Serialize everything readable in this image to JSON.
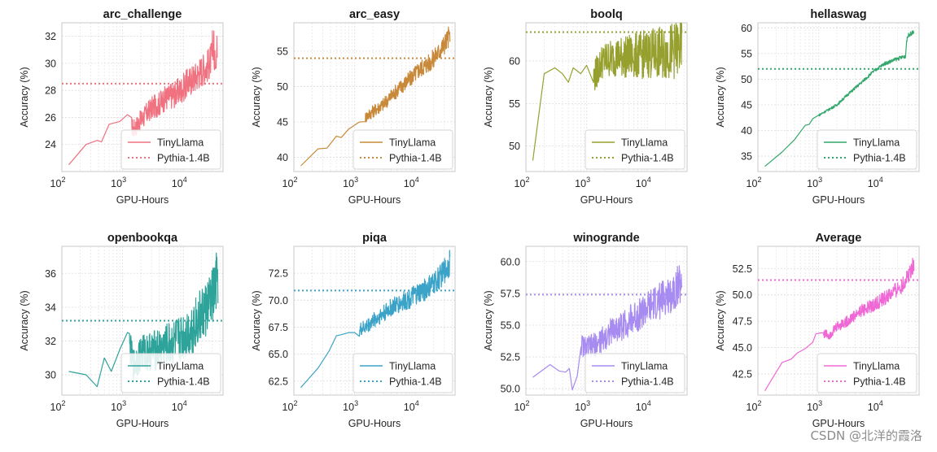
{
  "watermark": "CSDN @北洋的霞洛",
  "chart_data": [
    {
      "type": "line",
      "title": "arc_challenge",
      "xlabel": "GPU-Hours",
      "ylabel": "Accuracy (%)",
      "x_scale": "log",
      "xlim": [
        100,
        45000
      ],
      "ylim": [
        22.0,
        33.0
      ],
      "yticks": [
        24,
        26,
        28,
        30,
        32
      ],
      "ytick_labels": [
        "24",
        "26",
        "28",
        "30",
        "32"
      ],
      "series": [
        {
          "name": "TinyLlama",
          "color": "#f0717f",
          "points": [
            [
              130,
              22.5
            ],
            [
              250,
              24.0
            ],
            [
              380,
              24.3
            ],
            [
              450,
              24.2
            ],
            [
              600,
              25.5
            ],
            [
              900,
              25.7
            ],
            [
              1200,
              26.2
            ],
            [
              1500,
              25.1
            ],
            [
              2000,
              25.8
            ],
            [
              3000,
              26.7
            ],
            [
              4000,
              27.0
            ],
            [
              5000,
              27.4
            ],
            [
              7000,
              27.7
            ],
            [
              9000,
              28.0
            ],
            [
              12000,
              28.6
            ],
            [
              16000,
              29.0
            ],
            [
              20000,
              29.5
            ],
            [
              25000,
              29.8
            ],
            [
              30000,
              30.5
            ],
            [
              33000,
              31.0
            ],
            [
              36000,
              31.5
            ]
          ],
          "noise": 1.3,
          "noise_start": 1400,
          "tail": {
            "from": 30000,
            "low": 29.5,
            "high": 32.5
          }
        },
        {
          "name": "Pythia-1.4B",
          "color": "#f0717f",
          "style": "dotted",
          "y": 28.5
        }
      ],
      "legend": "lower-right"
    },
    {
      "type": "line",
      "title": "arc_easy",
      "xlabel": "GPU-Hours",
      "ylabel": "Accuracy (%)",
      "x_scale": "log",
      "xlim": [
        100,
        45000
      ],
      "ylim": [
        38.0,
        59.0
      ],
      "yticks": [
        40,
        45,
        50,
        55
      ],
      "ytick_labels": [
        "40",
        "45",
        "50",
        "55"
      ],
      "series": [
        {
          "name": "TinyLlama",
          "color": "#c9893a",
          "points": [
            [
              130,
              38.8
            ],
            [
              250,
              41.2
            ],
            [
              350,
              41.3
            ],
            [
              500,
              43.0
            ],
            [
              600,
              42.8
            ],
            [
              800,
              44.0
            ],
            [
              1200,
              45.0
            ],
            [
              2000,
              46.5
            ],
            [
              3000,
              47.5
            ],
            [
              5000,
              49.5
            ],
            [
              8000,
              51.0
            ],
            [
              12000,
              52.5
            ],
            [
              18000,
              53.5
            ],
            [
              25000,
              55.0
            ],
            [
              33000,
              56.5
            ],
            [
              37000,
              57.5
            ]
          ],
          "noise": 1.5,
          "noise_start": 1500
        },
        {
          "name": "Pythia-1.4B",
          "color": "#c9893a",
          "style": "dotted",
          "y": 54.0
        }
      ],
      "legend": "lower-right"
    },
    {
      "type": "line",
      "title": "boolq",
      "xlabel": "GPU-Hours",
      "ylabel": "Accuracy (%)",
      "x_scale": "log",
      "xlim": [
        100,
        45000
      ],
      "ylim": [
        47.0,
        64.5
      ],
      "yticks": [
        50,
        55,
        60
      ],
      "ytick_labels": [
        "50",
        "55",
        "60"
      ],
      "series": [
        {
          "name": "TinyLlama",
          "color": "#96a02e",
          "points": [
            [
              130,
              48.3
            ],
            [
              200,
              58.5
            ],
            [
              300,
              59.2
            ],
            [
              400,
              58.5
            ],
            [
              500,
              57.5
            ],
            [
              600,
              59.2
            ],
            [
              800,
              58.5
            ],
            [
              1000,
              59.5
            ],
            [
              1300,
              58.0
            ],
            [
              1800,
              60.0
            ],
            [
              3000,
              60.5
            ],
            [
              5000,
              60.5
            ],
            [
              10000,
              60.8
            ],
            [
              20000,
              61.0
            ],
            [
              37000,
              61.5
            ]
          ],
          "noise": 3.5,
          "noise_start": 1300
        },
        {
          "name": "Pythia-1.4B",
          "color": "#96a02e",
          "style": "dotted",
          "y": 63.4
        }
      ],
      "legend": "lower-right"
    },
    {
      "type": "line",
      "title": "hellaswag",
      "xlabel": "GPU-Hours",
      "ylabel": "Accuracy (%)",
      "x_scale": "log",
      "xlim": [
        100,
        45000
      ],
      "ylim": [
        32.0,
        61.0
      ],
      "yticks": [
        35,
        40,
        45,
        50,
        55,
        60
      ],
      "ytick_labels": [
        "35",
        "40",
        "45",
        "50",
        "55",
        "60"
      ],
      "series": [
        {
          "name": "TinyLlama",
          "color": "#34a86c",
          "points": [
            [
              130,
              33.0
            ],
            [
              250,
              35.8
            ],
            [
              400,
              38.2
            ],
            [
              600,
              41.0
            ],
            [
              700,
              41.2
            ],
            [
              800,
              42.3
            ],
            [
              1200,
              43.5
            ],
            [
              2000,
              45.0
            ],
            [
              3000,
              47.0
            ],
            [
              5000,
              49.3
            ],
            [
              8000,
              51.5
            ],
            [
              12000,
              53.0
            ],
            [
              20000,
              54.0
            ],
            [
              27000,
              54.5
            ],
            [
              28000,
              57.5
            ],
            [
              30000,
              58.6
            ],
            [
              37000,
              59.2
            ]
          ],
          "noise": 0.4,
          "noise_start": 1000
        },
        {
          "name": "Pythia-1.4B",
          "color": "#34a86c",
          "style": "dotted",
          "y": 52.0
        }
      ],
      "legend": "lower-right"
    },
    {
      "type": "line",
      "title": "openbookqa",
      "xlabel": "GPU-Hours",
      "ylabel": "Accuracy (%)",
      "x_scale": "log",
      "xlim": [
        100,
        45000
      ],
      "ylim": [
        28.8,
        37.6
      ],
      "yticks": [
        30,
        32,
        34,
        36
      ],
      "ytick_labels": [
        "30",
        "32",
        "34",
        "36"
      ],
      "series": [
        {
          "name": "TinyLlama",
          "color": "#2ea39a",
          "points": [
            [
              130,
              30.2
            ],
            [
              250,
              30.0
            ],
            [
              380,
              29.3
            ],
            [
              500,
              31.0
            ],
            [
              650,
              30.2
            ],
            [
              900,
              31.5
            ],
            [
              1200,
              32.5
            ],
            [
              1500,
              30.5
            ],
            [
              2000,
              31.3
            ],
            [
              4000,
              31.5
            ],
            [
              8000,
              32.0
            ],
            [
              12000,
              32.5
            ],
            [
              20000,
              33.5
            ],
            [
              30000,
              34.5
            ],
            [
              37000,
              35.8
            ]
          ],
          "noise": 1.8,
          "noise_start": 1300
        },
        {
          "name": "Pythia-1.4B",
          "color": "#2ea39a",
          "style": "dotted",
          "y": 33.2
        }
      ],
      "legend": "lower-right"
    },
    {
      "type": "line",
      "title": "piqa",
      "xlabel": "GPU-Hours",
      "ylabel": "Accuracy (%)",
      "x_scale": "log",
      "xlim": [
        100,
        45000
      ],
      "ylim": [
        61.2,
        75.0
      ],
      "yticks": [
        62.5,
        65.0,
        67.5,
        70.0,
        72.5
      ],
      "ytick_labels": [
        "62.5",
        "65.0",
        "67.5",
        "70.0",
        "72.5"
      ],
      "series": [
        {
          "name": "TinyLlama",
          "color": "#3ba3c7",
          "points": [
            [
              130,
              61.9
            ],
            [
              250,
              63.7
            ],
            [
              380,
              65.3
            ],
            [
              500,
              66.7
            ],
            [
              600,
              66.8
            ],
            [
              800,
              67.0
            ],
            [
              1000,
              67.0
            ],
            [
              1500,
              67.5
            ],
            [
              2500,
              68.5
            ],
            [
              4000,
              69.3
            ],
            [
              7000,
              70.0
            ],
            [
              12000,
              70.7
            ],
            [
              20000,
              71.5
            ],
            [
              30000,
              72.7
            ],
            [
              37000,
              73.5
            ]
          ],
          "noise": 1.2,
          "noise_start": 1200
        },
        {
          "name": "Pythia-1.4B",
          "color": "#3ba3c7",
          "style": "dotted",
          "y": 70.9
        }
      ],
      "legend": "lower-right"
    },
    {
      "type": "line",
      "title": "winogrande",
      "xlabel": "GPU-Hours",
      "ylabel": "Accuracy (%)",
      "x_scale": "log",
      "xlim": [
        100,
        45000
      ],
      "ylim": [
        49.5,
        61.2
      ],
      "yticks": [
        50.0,
        52.5,
        55.0,
        57.5,
        60.0
      ],
      "ytick_labels": [
        "50.0",
        "52.5",
        "55.0",
        "57.5",
        "60.0"
      ],
      "series": [
        {
          "name": "TinyLlama",
          "color": "#a78bf0",
          "points": [
            [
              130,
              50.9
            ],
            [
              250,
              51.9
            ],
            [
              350,
              51.4
            ],
            [
              450,
              51.3
            ],
            [
              520,
              51.6
            ],
            [
              580,
              49.9
            ],
            [
              700,
              51.0
            ],
            [
              800,
              53.5
            ],
            [
              1000,
              53.2
            ],
            [
              1500,
              53.5
            ],
            [
              2500,
              54.5
            ],
            [
              4000,
              55.0
            ],
            [
              8000,
              56.0
            ],
            [
              15000,
              56.8
            ],
            [
              25000,
              57.5
            ],
            [
              37000,
              58.5
            ]
          ],
          "noise": 1.6,
          "noise_start": 800
        },
        {
          "name": "Pythia-1.4B",
          "color": "#a78bf0",
          "style": "dotted",
          "y": 57.4
        }
      ],
      "legend": "lower-right"
    },
    {
      "type": "line",
      "title": "Average",
      "xlabel": "GPU-Hours",
      "ylabel": "Accuracy (%)",
      "x_scale": "log",
      "xlim": [
        100,
        45000
      ],
      "ylim": [
        40.5,
        54.6
      ],
      "yticks": [
        42.5,
        45.0,
        47.5,
        50.0,
        52.5
      ],
      "ytick_labels": [
        "42.5",
        "45.0",
        "47.5",
        "50.0",
        "52.5"
      ],
      "series": [
        {
          "name": "TinyLlama",
          "color": "#ef68d6",
          "points": [
            [
              130,
              40.9
            ],
            [
              250,
              43.6
            ],
            [
              350,
              43.9
            ],
            [
              450,
              44.5
            ],
            [
              600,
              44.9
            ],
            [
              800,
              45.5
            ],
            [
              900,
              46.3
            ],
            [
              1100,
              46.4
            ],
            [
              1500,
              46.2
            ],
            [
              2000,
              47.0
            ],
            [
              3000,
              47.5
            ],
            [
              5000,
              48.5
            ],
            [
              8000,
              49.0
            ],
            [
              15000,
              50.0
            ],
            [
              25000,
              51.0
            ],
            [
              37000,
              53.0
            ]
          ],
          "noise": 0.8,
          "noise_start": 1200
        },
        {
          "name": "Pythia-1.4B",
          "color": "#ef68d6",
          "style": "dotted",
          "y": 51.4
        }
      ],
      "legend": "lower-right"
    }
  ]
}
